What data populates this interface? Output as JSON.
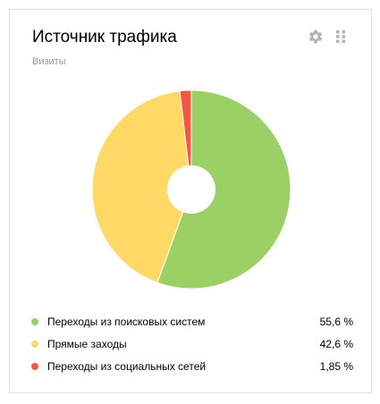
{
  "widget": {
    "title": "Источник трафика",
    "subtitle": "Визиты",
    "settings_icon": "gear-icon",
    "drag_icon": "drag-handle-icon",
    "icon_color": "#b3b3b3"
  },
  "chart_data": {
    "type": "pie",
    "style": "donut",
    "slices": [
      {
        "label": "Переходы из поисковых систем",
        "value": 55.6,
        "display": "55,6 %",
        "color": "#9bd065"
      },
      {
        "label": "Прямые заходы",
        "value": 42.6,
        "display": "42,6 %",
        "color": "#ffd966"
      },
      {
        "label": "Переходы из социальных сетей",
        "value": 1.85,
        "display": "1,85 %",
        "color": "#f25841"
      }
    ],
    "legend_position": "bottom"
  }
}
